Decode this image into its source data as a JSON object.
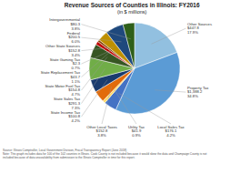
{
  "chart_data": {
    "type": "pie",
    "title": "Revenue Sources of Counties in Illinois: FY2016",
    "subtitle": "(in $ millions)",
    "categories": [
      "Other Sources\n$447.8\n17.9%",
      "Property Tax\n$1,388.2\n34.8%",
      "Local Sales Tax\n$176.1\n4.2%",
      "Utility Tax\n$41.9\n0.9%",
      "Other Local Taxes\n$152.8\n3.8%",
      "State Income Tax\n$100.8\n4.2%",
      "State Sales Tax\n$291.3\n7.3%",
      "State Motor Fuel Tax\n$154.8\n4.7%",
      "State Replacement Tax\n$43.7\n1.1%",
      "State Gaming Tax\n$2.3\n0.7%",
      "Other State Sources\n$152.8\n3.4%",
      "Federal\n$200.5\n6.0%",
      "Intergovernmental\n$80.3\n3.8%"
    ],
    "values": [
      17.9,
      34.8,
      4.2,
      0.9,
      3.8,
      4.2,
      7.3,
      4.7,
      1.1,
      0.7,
      3.4,
      6.0,
      3.8
    ],
    "colors": [
      "#92c0e0",
      "#5b9bd5",
      "#4472c4",
      "#ffd966",
      "#e26b0a",
      "#1a3b6e",
      "#70ad47",
      "#375623",
      "#c00000",
      "#833c00",
      "#bf9000",
      "#1f497d",
      "#2e5f1a"
    ],
    "annotations": [
      "Source: Illinois Comptroller, Local Government Division, Fiscal Transparency Report (June 2018)\nNote: This graph includes data for 100 of the 102 counties in Illinois. Cook County is not included because it would skew the data and Champaign County is not\nincluded because of data unavailability from submission to the Illinois Comptroller in time for this report."
    ]
  }
}
